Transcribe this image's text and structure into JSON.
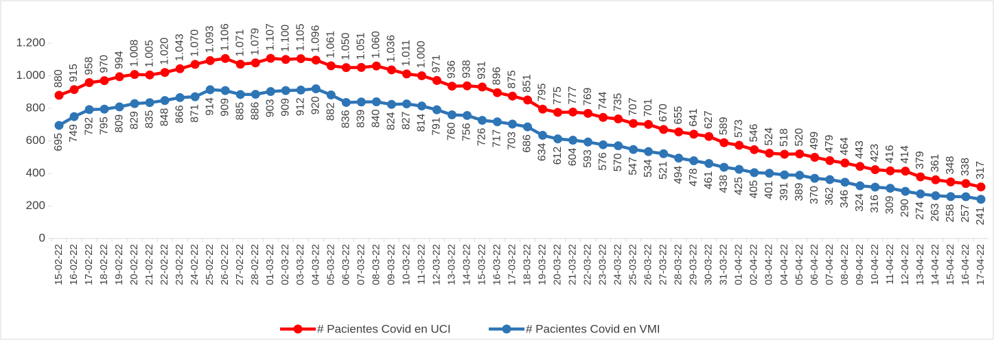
{
  "chart_data": {
    "type": "line",
    "categories": [
      "15-02-22",
      "16-02-22",
      "17-02-22",
      "18-02-22",
      "19-02-22",
      "20-02-22",
      "21-02-22",
      "22-02-22",
      "23-02-22",
      "24-02-22",
      "25-02-22",
      "26-02-22",
      "27-02-22",
      "28-02-22",
      "01-03-22",
      "02-03-22",
      "03-03-22",
      "04-03-22",
      "05-03-22",
      "06-03-22",
      "07-03-22",
      "08-03-22",
      "09-03-22",
      "10-03-22",
      "11-03-22",
      "12-03-22",
      "13-03-22",
      "14-03-22",
      "15-03-22",
      "16-03-22",
      "17-03-22",
      "18-03-22",
      "19-03-22",
      "20-03-22",
      "21-03-22",
      "22-03-22",
      "23-03-22",
      "24-03-22",
      "25-03-22",
      "26-03-22",
      "27-03-22",
      "28-03-22",
      "29-03-22",
      "30-03-22",
      "31-03-22",
      "01-04-22",
      "02-04-22",
      "03-04-22",
      "04-04-22",
      "05-04-22",
      "06-04-22",
      "07-04-22",
      "08-04-22",
      "09-04-22",
      "10-04-22",
      "11-04-22",
      "12-04-22",
      "13-04-22",
      "14-04-22",
      "15-04-22",
      "16-04-22",
      "17-04-22"
    ],
    "series": [
      {
        "name": "# Pacientes Covid en UCI",
        "color": "#ff0000",
        "values": [
          880,
          915,
          958,
          970,
          994,
          1008,
          1005,
          1020,
          1043,
          1070,
          1093,
          1106,
          1071,
          1079,
          1107,
          1100,
          1105,
          1096,
          1061,
          1050,
          1051,
          1060,
          1036,
          1011,
          1000,
          971,
          936,
          938,
          931,
          896,
          875,
          851,
          795,
          775,
          777,
          769,
          744,
          735,
          707,
          701,
          670,
          655,
          641,
          627,
          589,
          573,
          546,
          524,
          518,
          520,
          499,
          479,
          464,
          443,
          423,
          416,
          414,
          379,
          361,
          348,
          338,
          317
        ],
        "value_labels": [
          "880",
          "915",
          "958",
          "970",
          "994",
          "1.008",
          "1.005",
          "1.020",
          "1.043",
          "1.070",
          "1.093",
          "1.106",
          "1.071",
          "1.079",
          "1.107",
          "1.100",
          "1.105",
          "1.096",
          "1.061",
          "1.050",
          "1.051",
          "1.060",
          "1.036",
          "1.011",
          "1.000",
          "971",
          "936",
          "938",
          "931",
          "896",
          "875",
          "851",
          "795",
          "775",
          "777",
          "769",
          "744",
          "735",
          "707",
          "701",
          "670",
          "655",
          "641",
          "627",
          "589",
          "573",
          "546",
          "524",
          "518",
          "520",
          "499",
          "479",
          "464",
          "443",
          "423",
          "416",
          "414",
          "379",
          "361",
          "348",
          "338",
          "317"
        ]
      },
      {
        "name": "# Pacientes Covid en VMI",
        "color": "#2e75b6",
        "values": [
          695,
          749,
          792,
          795,
          809,
          829,
          835,
          848,
          866,
          871,
          914,
          909,
          885,
          886,
          903,
          909,
          912,
          920,
          882,
          836,
          839,
          840,
          824,
          827,
          814,
          791,
          760,
          756,
          726,
          717,
          703,
          686,
          634,
          612,
          604,
          593,
          576,
          570,
          547,
          534,
          521,
          494,
          478,
          461,
          438,
          425,
          405,
          401,
          391,
          389,
          370,
          362,
          346,
          324,
          316,
          309,
          290,
          274,
          263,
          258,
          257,
          241
        ],
        "value_labels": [
          "695",
          "749",
          "792",
          "795",
          "809",
          "829",
          "835",
          "848",
          "866",
          "871",
          "914",
          "909",
          "885",
          "886",
          "903",
          "909",
          "912",
          "920",
          "882",
          "836",
          "839",
          "840",
          "824",
          "827",
          "814",
          "791",
          "760",
          "756",
          "726",
          "717",
          "703",
          "686",
          "634",
          "612",
          "604",
          "593",
          "576",
          "570",
          "547",
          "534",
          "521",
          "494",
          "478",
          "461",
          "438",
          "425",
          "405",
          "401",
          "391",
          "389",
          "370",
          "362",
          "346",
          "324",
          "316",
          "309",
          "290",
          "274",
          "263",
          "258",
          "257",
          "241"
        ]
      }
    ],
    "ylim": [
      0,
      1200
    ],
    "yticks": [
      0,
      200,
      400,
      600,
      800,
      {
        "value": 1000,
        "label": "1.000"
      },
      {
        "value": 1200,
        "label": "1.200"
      }
    ],
    "legend": "bottom"
  }
}
